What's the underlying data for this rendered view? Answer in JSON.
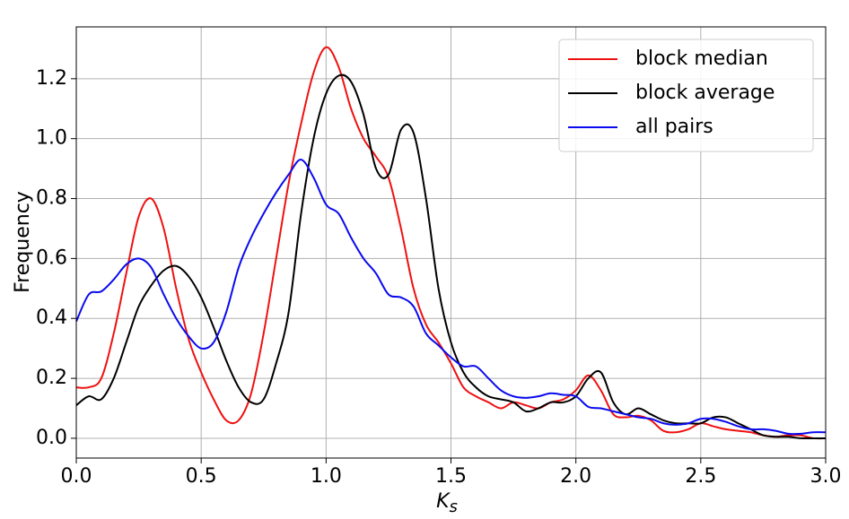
{
  "chart_data": {
    "type": "line",
    "xlabel": {
      "main": "K",
      "sub": "s"
    },
    "ylabel": "Frequency",
    "x": [
      0,
      0.05,
      0.1,
      0.15,
      0.2,
      0.25,
      0.3,
      0.35,
      0.4,
      0.45,
      0.5,
      0.55,
      0.6,
      0.65,
      0.7,
      0.75,
      0.8,
      0.85,
      0.9,
      0.95,
      1.0,
      1.05,
      1.1,
      1.15,
      1.2,
      1.25,
      1.3,
      1.35,
      1.4,
      1.45,
      1.5,
      1.55,
      1.6,
      1.65,
      1.7,
      1.75,
      1.8,
      1.85,
      1.9,
      1.95,
      2.0,
      2.05,
      2.1,
      2.15,
      2.2,
      2.25,
      2.3,
      2.35,
      2.4,
      2.45,
      2.5,
      2.55,
      2.6,
      2.65,
      2.7,
      2.75,
      2.8,
      2.85,
      2.9,
      2.95,
      3.0
    ],
    "series": [
      {
        "name": "block median",
        "color": "#ee1111",
        "values": [
          0.17,
          0.17,
          0.2,
          0.35,
          0.55,
          0.74,
          0.8,
          0.7,
          0.5,
          0.33,
          0.22,
          0.13,
          0.06,
          0.06,
          0.15,
          0.35,
          0.6,
          0.85,
          1.05,
          1.22,
          1.305,
          1.24,
          1.1,
          1.0,
          0.94,
          0.87,
          0.7,
          0.5,
          0.38,
          0.32,
          0.25,
          0.17,
          0.14,
          0.12,
          0.1,
          0.12,
          0.11,
          0.1,
          0.12,
          0.13,
          0.16,
          0.21,
          0.16,
          0.08,
          0.07,
          0.075,
          0.06,
          0.025,
          0.02,
          0.03,
          0.05,
          0.04,
          0.03,
          0.025,
          0.02,
          0.01,
          0.005,
          0.01,
          0.01,
          0.0,
          0.0
        ]
      },
      {
        "name": "block average",
        "color": "#000000",
        "values": [
          0.11,
          0.14,
          0.13,
          0.2,
          0.32,
          0.44,
          0.51,
          0.56,
          0.575,
          0.54,
          0.47,
          0.37,
          0.26,
          0.17,
          0.12,
          0.13,
          0.25,
          0.42,
          0.75,
          1.0,
          1.15,
          1.21,
          1.19,
          1.08,
          0.9,
          0.88,
          1.03,
          1.02,
          0.8,
          0.5,
          0.32,
          0.22,
          0.17,
          0.14,
          0.13,
          0.12,
          0.09,
          0.1,
          0.12,
          0.12,
          0.14,
          0.2,
          0.22,
          0.12,
          0.08,
          0.1,
          0.08,
          0.06,
          0.05,
          0.05,
          0.05,
          0.07,
          0.07,
          0.05,
          0.03,
          0.01,
          0.005,
          0.005,
          0.0,
          0.0,
          0.0
        ]
      },
      {
        "name": "all pairs",
        "color": "#0a0aee",
        "values": [
          0.39,
          0.48,
          0.49,
          0.53,
          0.58,
          0.6,
          0.57,
          0.48,
          0.4,
          0.34,
          0.3,
          0.32,
          0.42,
          0.57,
          0.67,
          0.75,
          0.82,
          0.88,
          0.93,
          0.87,
          0.78,
          0.75,
          0.67,
          0.6,
          0.55,
          0.48,
          0.47,
          0.44,
          0.35,
          0.31,
          0.27,
          0.24,
          0.24,
          0.2,
          0.16,
          0.14,
          0.135,
          0.14,
          0.15,
          0.145,
          0.14,
          0.105,
          0.1,
          0.09,
          0.08,
          0.07,
          0.065,
          0.05,
          0.045,
          0.05,
          0.065,
          0.065,
          0.055,
          0.04,
          0.03,
          0.03,
          0.025,
          0.015,
          0.015,
          0.02,
          0.02
        ]
      }
    ],
    "xlim": [
      0,
      3
    ],
    "ylim": [
      -0.066,
      1.373
    ],
    "xticks": [
      {
        "value": 0,
        "label": "0.0"
      },
      0.5,
      {
        "value": 1,
        "label": "1.0"
      },
      1.5,
      {
        "value": 2,
        "label": "2.0"
      },
      2.5,
      {
        "value": 3,
        "label": "3.0"
      }
    ],
    "yticks": [
      {
        "value": 0,
        "label": "0.0"
      },
      0.2,
      0.4,
      0.6,
      0.8,
      {
        "value": 1,
        "label": "1.0"
      },
      1.2
    ],
    "grid": true,
    "legend": "upper right"
  }
}
